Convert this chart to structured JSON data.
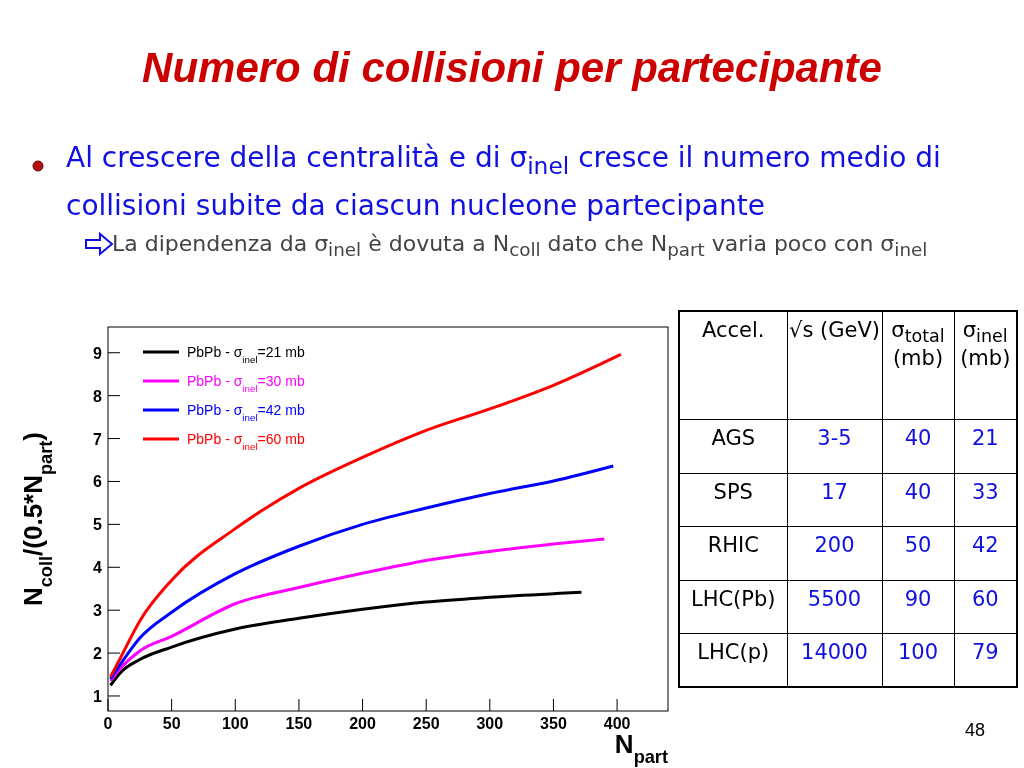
{
  "chart_data": [
    {
      "type": "line",
      "title": "Numero di collisioni per partecipante",
      "xlabel": "N$_{part}$",
      "ylabel": "N$_{coll}$/(0.5*N$_{part}$)",
      "annotations": [
        "Al crescere della centralità e di σ$_{inel}$ cresce il numero medio di collisioni subite da ciascun nucleone partecipante",
        "La dipendenza da σ$_{inel}$ è dovuta a N$_{coll}$ dato che N$_{part}$ varia poco con σ$_{inel}$",
        "48"
      ],
      "xlim": [
        0,
        440
      ],
      "xticks": [
        0,
        50,
        100,
        150,
        200,
        250,
        300,
        350,
        400
      ],
      "ylim": [
        0.65,
        9.6
      ],
      "yticks": [
        1,
        2,
        3,
        4,
        5,
        6,
        7,
        8,
        9
      ],
      "grid": false,
      "legend": "top left",
      "marker": "none",
      "line_style": "solid",
      "series": [
        {
          "name": "PbPb - σ$_{inel}$=21 mb",
          "color": "#000000",
          "x": [
            2,
            10,
            25,
            50,
            100,
            150,
            200,
            250,
            300,
            372
          ],
          "values": [
            1.25,
            1.55,
            1.85,
            2.14,
            2.56,
            2.81,
            3.02,
            3.19,
            3.3,
            3.42
          ]
        },
        {
          "name": "PbPb - σ$_{inel}$=30 mb",
          "color": "#ff00ff",
          "x": [
            2,
            10,
            25,
            50,
            100,
            150,
            200,
            250,
            300,
            350,
            390
          ],
          "values": [
            1.35,
            1.65,
            2.05,
            2.39,
            3.15,
            3.53,
            3.86,
            4.16,
            4.37,
            4.54,
            4.66
          ]
        },
        {
          "name": "PbPb - σ$_{inel}$=42 mb",
          "color": "#0000ff",
          "x": [
            2,
            10,
            25,
            50,
            100,
            150,
            200,
            250,
            300,
            350,
            397
          ],
          "values": [
            1.4,
            1.75,
            2.35,
            2.95,
            3.85,
            4.49,
            5.0,
            5.38,
            5.72,
            6.01,
            6.36
          ]
        },
        {
          "name": "PbPb - σ$_{inel}$=60 mb",
          "color": "#ff0000",
          "x": [
            2,
            10,
            25,
            50,
            100,
            150,
            200,
            250,
            300,
            350,
            403
          ],
          "values": [
            1.45,
            1.9,
            2.75,
            3.7,
            4.9,
            5.84,
            6.56,
            7.19,
            7.69,
            8.24,
            8.96
          ]
        }
      ]
    },
    {
      "type": "other",
      "annotations": [
        "Accel.",
        "√s (GeV)",
        "σ$_{total}$ (mb)",
        "σ$_{inel}$ (mb)",
        "AGS",
        "3-5",
        "40",
        "21",
        "SPS",
        "17",
        "40",
        "33",
        "RHIC",
        "200",
        "50",
        "42",
        "LHC(Pb)",
        "5500",
        "90",
        "60",
        "LHC(p)",
        "14000",
        "100",
        "79"
      ]
    }
  ]
}
